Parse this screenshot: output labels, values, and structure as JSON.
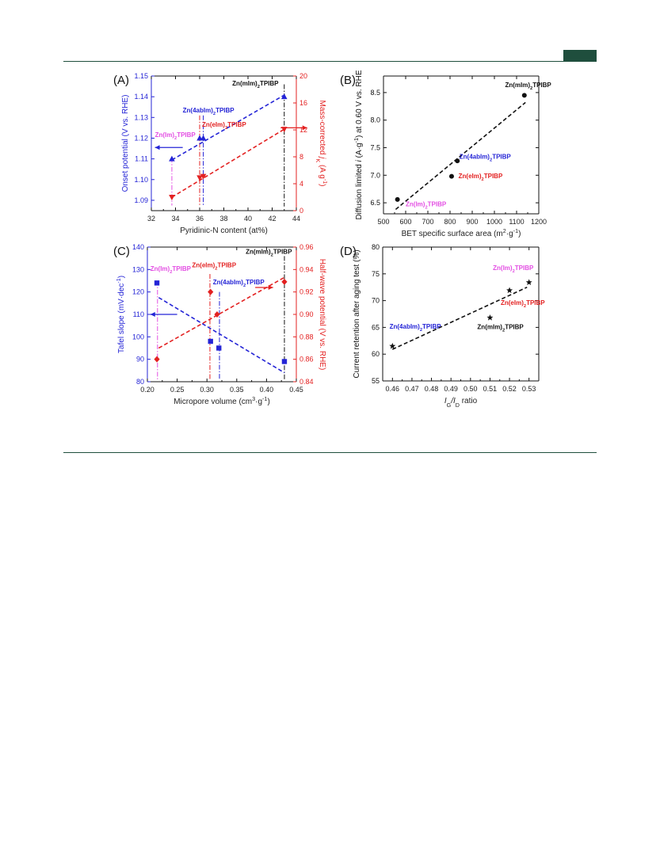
{
  "colors": {
    "header": "#1f4e3d",
    "blue": "#2424d6",
    "red": "#e32121",
    "magenta": "#e34ee3",
    "black": "#111111"
  },
  "chart_data": [
    {
      "panel": "(A)",
      "type": "scatter",
      "xlabel": "Pyridinic-N content (at%)",
      "ylabel": "Onset potential (V vs. RHE)",
      "y2label": "Mass-corrected jK (A g-1)",
      "y2label_parts": [
        "Mass-corrected ",
        "j",
        "K",
        " (A g",
        "-1",
        ")"
      ],
      "xlim": [
        32,
        44
      ],
      "ylim": [
        1.085,
        1.15
      ],
      "y2lim": [
        0,
        20
      ],
      "xticks": [
        "32",
        "34",
        "36",
        "38",
        "40",
        "42",
        "44"
      ],
      "yticks": [
        "1.09",
        "1.10",
        "1.11",
        "1.12",
        "1.13",
        "1.14",
        "1.15"
      ],
      "y2ticks": [
        "0",
        "4",
        "8",
        "12",
        "16",
        "20"
      ],
      "series": [
        {
          "axis": "left",
          "marker": "triangle-up",
          "color": "blue",
          "points": [
            [
              33.7,
              1.11
            ],
            [
              36.0,
              1.12
            ],
            [
              36.3,
              1.12
            ],
            [
              43.0,
              1.14
            ]
          ]
        },
        {
          "axis": "right",
          "marker": "triangle-down",
          "color": "red",
          "points": [
            [
              33.7,
              2.0
            ],
            [
              36.0,
              4.9
            ],
            [
              36.3,
              5.1
            ],
            [
              43.0,
              12.1
            ]
          ]
        }
      ],
      "fits": [
        {
          "axis": "left",
          "color": "blue",
          "from": [
            33.7,
            1.1095
          ],
          "to": [
            43.0,
            1.1408
          ]
        },
        {
          "axis": "right",
          "color": "red",
          "from": [
            33.7,
            2.0
          ],
          "to": [
            43.0,
            12.1
          ]
        }
      ],
      "droplines": [
        {
          "x": 33.7,
          "color": "magenta",
          "y_from": 1.1105,
          "y_to": 1.0875
        },
        {
          "x": 36.0,
          "color": "red",
          "y_from": 1.131,
          "y_to": 1.087
        },
        {
          "x": 36.3,
          "color": "blue",
          "y_from": 1.131,
          "y_to": 1.087
        },
        {
          "x": 43.0,
          "color": "black",
          "y_from": 1.146,
          "y_to": 1.087
        }
      ],
      "annotations": [
        {
          "text": "Zn(mIm)2TPIBP",
          "parts": [
            "Zn(mIm)",
            "2",
            "TPIBP"
          ],
          "color": "black",
          "x": 38.7,
          "y": 1.1455
        },
        {
          "text": "Zn(4abIm)2TPIBP",
          "parts": [
            "Zn(4abIm)",
            "2",
            "TPIBP"
          ],
          "color": "blue",
          "x": 34.6,
          "y": 1.1325
        },
        {
          "text": "Zn(eIm)2TPIBP",
          "parts": [
            "Zn(eIm)",
            "2",
            "TPIBP"
          ],
          "color": "red",
          "x": 36.2,
          "y": 1.1255
        },
        {
          "text": "Zn(Im)2TPIBP",
          "parts": [
            "Zn(Im)",
            "2",
            "TPIBP"
          ],
          "color": "magenta",
          "x": 32.3,
          "y": 1.1205
        }
      ],
      "arrows": [
        {
          "dir": "left",
          "color": "blue",
          "x_from": 34.6,
          "x_to": 32.3,
          "y": 1.1155
        },
        {
          "dir": "right",
          "color": "red",
          "x_from": 42.7,
          "x_to": 44.9,
          "y": 1.125
        }
      ]
    },
    {
      "panel": "(B)",
      "type": "scatter",
      "xlabel": "BET specific surface area (m2·g-1)",
      "xlabel_parts": [
        "BET specific surface area (m",
        "2",
        "·g",
        "-1",
        ")"
      ],
      "ylabel": "Diffusion limited i (A·g-1) at 0.60 V vs. RHE",
      "ylabel_parts": [
        "Diffusion limited ",
        "i",
        " (A·g",
        "-1",
        ") at 0.60 V vs. RHE"
      ],
      "xlim": [
        500,
        1200
      ],
      "ylim": [
        6.3,
        8.8
      ],
      "xticks": [
        "500",
        "600",
        "700",
        "800",
        "900",
        "1000",
        "1100",
        "1200"
      ],
      "yticks": [
        "6.5",
        "7.0",
        "7.5",
        "8.0",
        "8.5"
      ],
      "series": [
        {
          "marker": "circle",
          "color": "black",
          "points": [
            [
              563,
              6.56
            ],
            [
              807,
              6.98
            ],
            [
              833,
              7.26
            ],
            [
              1135,
              8.45
            ]
          ]
        }
      ],
      "fits": [
        {
          "color": "black",
          "from": [
            555,
            6.38
          ],
          "to": [
            1140,
            8.32
          ]
        }
      ],
      "annotations": [
        {
          "text": "Zn(mIm)2TPIBP",
          "parts": [
            "Zn(mIm)",
            "2",
            "TPIBP"
          ],
          "color": "black",
          "x": 1048,
          "y": 8.6
        },
        {
          "text": "Zn(4abIm)2TPIBP",
          "parts": [
            "Zn(4abIm)",
            "2",
            "TPIBP"
          ],
          "color": "blue",
          "x": 842,
          "y": 7.3
        },
        {
          "text": "Zn(eIm)2TPIBP",
          "parts": [
            "Zn(eIm)",
            "2",
            "TPIBP"
          ],
          "color": "red",
          "x": 838,
          "y": 6.95
        },
        {
          "text": "Zn(Im)2TPIBP",
          "parts": [
            "Zn(Im)",
            "2",
            "TPIBP"
          ],
          "color": "magenta",
          "x": 600,
          "y": 6.44
        }
      ]
    },
    {
      "panel": "(C)",
      "type": "scatter",
      "xlabel": "Micropore volume (cm3·g-1)",
      "xlabel_parts": [
        "Micropore volume (cm",
        "3",
        "·g",
        "-1",
        ")"
      ],
      "ylabel": "Tafel slope (mV·dec-1)",
      "ylabel_parts": [
        "Tafel slope (mV·dec",
        "-1",
        ")"
      ],
      "y2label": "Half-wave potential (V vs. RHE)",
      "xlim": [
        0.2,
        0.45
      ],
      "ylim": [
        80,
        140
      ],
      "y2lim": [
        0.84,
        0.96
      ],
      "xticks": [
        "0.20",
        "0.25",
        "0.30",
        "0.35",
        "0.40",
        "0.45"
      ],
      "yticks": [
        "80",
        "90",
        "100",
        "110",
        "120",
        "130",
        "140"
      ],
      "y2ticks": [
        "0.84",
        "0.86",
        "0.88",
        "0.90",
        "0.92",
        "0.94",
        "0.96"
      ],
      "series": [
        {
          "axis": "left",
          "marker": "square",
          "color": "blue",
          "points": [
            [
              0.216,
              124
            ],
            [
              0.306,
              98
            ],
            [
              0.32,
              95
            ],
            [
              0.43,
              89
            ]
          ]
        },
        {
          "axis": "right",
          "marker": "diamond",
          "color": "red",
          "points": [
            [
              0.216,
              0.86
            ],
            [
              0.306,
              0.92
            ],
            [
              0.317,
              0.9
            ],
            [
              0.43,
              0.929
            ]
          ]
        }
      ],
      "fits": [
        {
          "axis": "left",
          "color": "blue",
          "from": [
            0.219,
            117.5
          ],
          "to": [
            0.43,
            84.0
          ]
        },
        {
          "axis": "right",
          "color": "red",
          "from": [
            0.219,
            0.87
          ],
          "to": [
            0.43,
            0.933
          ]
        }
      ],
      "droplines": [
        {
          "x": 0.217,
          "color": "magenta",
          "y_from": 125,
          "y_to": 81
        },
        {
          "x": 0.305,
          "color": "red",
          "y_from": 128,
          "y_to": 81
        },
        {
          "x": 0.321,
          "color": "blue",
          "y_from": 120,
          "y_to": 81
        },
        {
          "x": 0.43,
          "color": "black",
          "y_from": 136,
          "y_to": 81
        }
      ],
      "annotations": [
        {
          "text": "Zn(mIm)2TPIBP",
          "parts": [
            "Zn(mIm)",
            "2",
            "TPIBP"
          ],
          "color": "black",
          "x": 0.365,
          "y": 137
        },
        {
          "text": "Zn(eIm)2TPIBP",
          "parts": [
            "Zn(eIm)",
            "2",
            "TPIBP"
          ],
          "color": "red",
          "x": 0.275,
          "y": 131
        },
        {
          "text": "Zn(4abIm)2TPIBP",
          "parts": [
            "Zn(4abIm)",
            "2",
            "TPIBP"
          ],
          "color": "blue",
          "x": 0.31,
          "y": 123.5
        },
        {
          "text": "Zn(Im)2TPIBP",
          "parts": [
            "Zn(Im)",
            "2",
            "TPIBP"
          ],
          "color": "magenta",
          "x": 0.205,
          "y": 129.5
        }
      ],
      "arrows": [
        {
          "dir": "left",
          "color": "blue",
          "x_from": 0.25,
          "x_to": 0.205,
          "y": 110
        },
        {
          "dir": "right",
          "color": "red",
          "x_from": 0.381,
          "x_to": 0.411,
          "y": 122
        }
      ]
    },
    {
      "panel": "(D)",
      "type": "scatter",
      "xlabel": "IG/ID ratio",
      "xlabel_parts": [
        "I",
        "G",
        "/I",
        "D",
        " ratio"
      ],
      "ylabel": "Current retention after aging test (%)",
      "xlim": [
        0.455,
        0.535
      ],
      "ylim": [
        55,
        80
      ],
      "xticks": [
        "0.46",
        "0.47",
        "0.48",
        "0.49",
        "0.50",
        "0.51",
        "0.52",
        "0.53"
      ],
      "yticks": [
        "55",
        "60",
        "65",
        "70",
        "75",
        "80"
      ],
      "series": [
        {
          "marker": "star",
          "color": "black",
          "points": [
            [
              0.46,
              61.5
            ],
            [
              0.51,
              66.8
            ],
            [
              0.52,
              71.9
            ],
            [
              0.53,
              73.4
            ]
          ]
        }
      ],
      "fits": [
        {
          "color": "black",
          "from": [
            0.46,
            60.9
          ],
          "to": [
            0.529,
            72.5
          ]
        }
      ],
      "annotations": [
        {
          "text": "Zn(Im)2TPIBP",
          "parts": [
            "Zn(Im)",
            "2",
            "TPIBP"
          ],
          "color": "magenta",
          "x": 0.5115,
          "y": 75.7
        },
        {
          "text": "Zn(eIm)2TPIBP",
          "parts": [
            "Zn(eIm)",
            "2",
            "TPIBP"
          ],
          "color": "red",
          "x": 0.5155,
          "y": 69.2
        },
        {
          "text": "Zn(mIm)2TPIBP",
          "parts": [
            "Zn(mIm)",
            "2",
            "TPIBP"
          ],
          "color": "black",
          "x": 0.5035,
          "y": 64.7
        },
        {
          "text": "Zn(4abIm)2TPIBP",
          "parts": [
            "Zn(4abIm)",
            "2",
            "TPIBP"
          ],
          "color": "blue",
          "x": 0.4585,
          "y": 64.8
        }
      ]
    }
  ]
}
